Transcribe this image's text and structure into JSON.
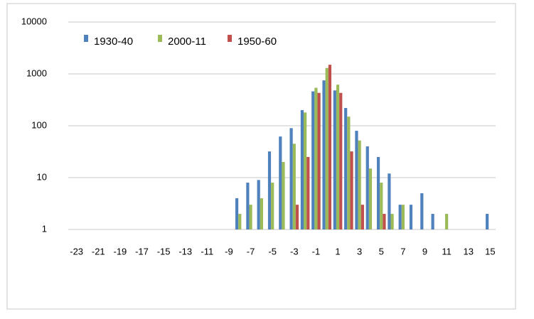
{
  "chart_data": {
    "type": "bar",
    "categories": [
      -23,
      null,
      -21,
      null,
      -19,
      null,
      -17,
      null,
      -15,
      null,
      -13,
      null,
      -11,
      null,
      -9,
      null,
      -7,
      null,
      -5,
      null,
      -3,
      null,
      -1,
      null,
      1,
      null,
      3,
      null,
      5,
      null,
      7,
      null,
      9,
      null,
      11,
      null,
      13,
      null,
      15
    ],
    "series": [
      {
        "name": "1930-40",
        "color": "#4f81bd",
        "values": [
          null,
          null,
          null,
          null,
          null,
          null,
          null,
          null,
          null,
          null,
          null,
          null,
          null,
          null,
          null,
          4,
          8,
          9,
          32,
          62,
          90,
          200,
          460,
          750,
          480,
          220,
          80,
          40,
          25,
          12,
          3,
          3,
          5,
          2,
          null,
          null,
          null,
          null,
          2
        ]
      },
      {
        "name": "2000-11",
        "color": "#9bbb59",
        "values": [
          null,
          null,
          null,
          null,
          null,
          null,
          null,
          null,
          null,
          null,
          null,
          null,
          null,
          null,
          null,
          2,
          3,
          4,
          8,
          20,
          45,
          180,
          540,
          1300,
          620,
          150,
          52,
          15,
          8,
          2,
          3,
          null,
          null,
          null,
          2,
          null,
          null,
          null,
          null
        ]
      },
      {
        "name": "1950-60",
        "color": "#c0504d",
        "values": [
          null,
          null,
          null,
          null,
          null,
          null,
          null,
          null,
          null,
          null,
          null,
          null,
          null,
          null,
          null,
          null,
          null,
          null,
          null,
          null,
          3,
          25,
          430,
          1500,
          430,
          32,
          3,
          null,
          2,
          null,
          null,
          null,
          null,
          null,
          null,
          null,
          null,
          null,
          null
        ]
      }
    ],
    "ylim": [
      1,
      10000
    ],
    "yticks": [
      1,
      10,
      100,
      1000,
      10000
    ],
    "log_scale": true,
    "grid": true,
    "legend": "top-left"
  }
}
